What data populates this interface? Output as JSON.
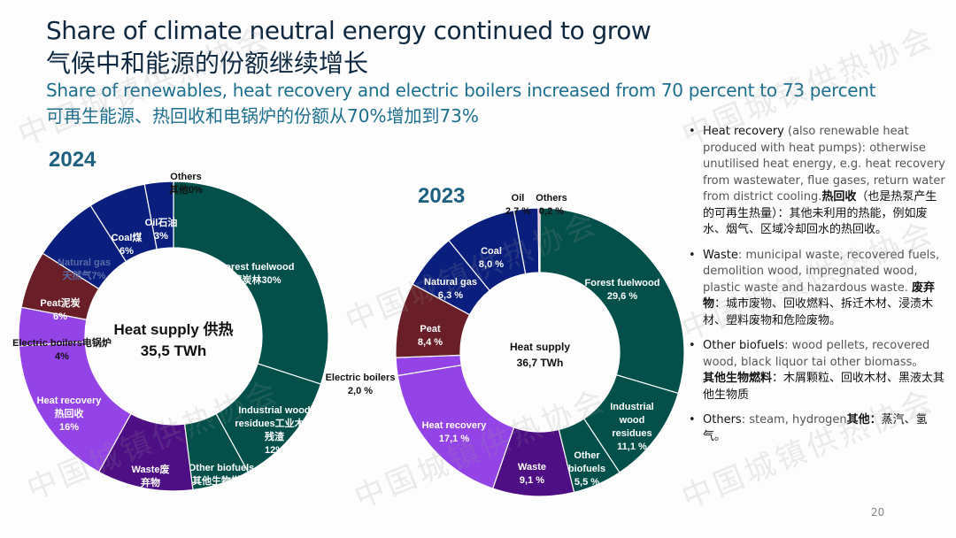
{
  "header": {
    "title_en": "Share of climate neutral energy continued to grow",
    "title_zh": "气候中和能源的份额继续增长",
    "subtitle_en": "Share of renewables, heat recovery and electric boilers increased from 70 percent to 73 percent",
    "subtitle_zh": "可再生能源、热回收和电锅炉的份额从70%增加到73%"
  },
  "watermark": "中国城镇供热协会",
  "colors": {
    "forest_green": "#03504a",
    "waste_purple": "#4e0f85",
    "heat_recovery_purple": "#9444e6",
    "peat_maroon": "#6a1e28",
    "fossil_navy": "#0a1f7d",
    "others_pink": "#e070a0",
    "title_navy": "#0e2841",
    "subtitle_teal": "#1d6f8f"
  },
  "chart_data": [
    {
      "type": "pie",
      "variant": "donut",
      "title": "2024",
      "center_label": "Heat supply 供热",
      "center_value": "35,5 TWh",
      "unit": "%",
      "categories": [
        "Forest fuelwood",
        "Industrial wood residues",
        "Other biofuels",
        "Waste",
        "Heat recovery",
        "Electric boilers",
        "Peat",
        "Natural gas",
        "Coal",
        "Oil",
        "Others"
      ],
      "values": [
        30,
        12,
        6,
        10,
        16,
        4,
        6,
        7,
        6,
        3,
        0
      ],
      "labels": [
        {
          "line1": "Forest fuelwood",
          "line2": "薪炭林30%"
        },
        {
          "line1": "Industrial wood",
          "line2": "residues工业木材",
          "line3": "残渣",
          "line4": "12%"
        },
        {
          "line1": "Other biofuels",
          "line2": "其他生物燃料",
          "line3": "6%"
        },
        {
          "line1": "Waste废",
          "line2": "弃物",
          "line3": "10%"
        },
        {
          "line1": "Heat recovery",
          "line2": "热回收",
          "line3": "16%"
        },
        {
          "line1": "Electric boilers电锅炉",
          "line2": "4%"
        },
        {
          "line1": "Peat泥炭",
          "line2": "6%"
        },
        {
          "line1": "Natural gas",
          "line2": "天然气7%"
        },
        {
          "line1": "Coal煤",
          "line2": "6%"
        },
        {
          "line1": "Oil石油",
          "line2": "3%"
        },
        {
          "line1": "Others",
          "line2": "其他0%"
        }
      ]
    },
    {
      "type": "pie",
      "variant": "donut",
      "title": "2023",
      "center_label": "Heat supply",
      "center_value": "36,7 TWh",
      "unit": "%",
      "categories": [
        "Forest fuelwood",
        "Industrial wood residues",
        "Other biofuels",
        "Waste",
        "Heat recovery",
        "Electric boilers",
        "Peat",
        "Natural gas",
        "Coal",
        "Oil",
        "Others"
      ],
      "values": [
        29.6,
        11.1,
        5.5,
        9.1,
        17.1,
        2.0,
        8.4,
        6.3,
        8.0,
        2.7,
        0.2
      ],
      "labels": [
        {
          "line1": "Forest fuelwood",
          "line2": "29,6 %"
        },
        {
          "line1": "Industrial",
          "line2": "wood",
          "line3": "residues",
          "line4": "11,1 %"
        },
        {
          "line1": "Other",
          "line2": "biofuels",
          "line3": "5,5 %"
        },
        {
          "line1": "Waste",
          "line2": "9,1 %"
        },
        {
          "line1": "Heat recovery",
          "line2": "17,1 %"
        },
        {
          "line1": "Electric boilers",
          "line2": "2,0 %"
        },
        {
          "line1": "Peat",
          "line2": "8,4 %"
        },
        {
          "line1": "Natural gas",
          "line2": "6,3 %"
        },
        {
          "line1": "Coal",
          "line2": "8,0 %"
        },
        {
          "line1": "Oil",
          "line2": "2,7 %"
        },
        {
          "line1": "Others",
          "line2": "0,2 %"
        }
      ]
    }
  ],
  "notes": [
    {
      "term": "Heat recovery",
      "text": " (also renewable heat produced with heat pumps): otherwise unutilised heat energy, e.g. heat recovery from wastewater, flue gases, return water from district cooling.",
      "zh_term": "热回收",
      "zh_text": "（也是热泵产生的可再生热量）：其他未利用的热能，例如废水、烟气、区域冷却回水的热回收。"
    },
    {
      "term": "Waste",
      "text": ": municipal waste, recovered fuels, demolition wood, impregnated wood, plastic waste and hazardous waste. ",
      "zh_term": "废弃物",
      "zh_text": "：城市废物、回收燃料、拆迁木材、浸渍木材、塑料废物和危险废物。"
    },
    {
      "term": "Other biofuels",
      "text": ": wood pellets, recovered wood, black liquor tai other biomass。",
      "zh_term": "其他生物燃料",
      "zh_text": "：木屑颗粒、回收木材、黑液太其他生物质"
    },
    {
      "term": "Others",
      "text": ": steam, hydrogen",
      "zh_term": "其他：",
      "zh_text": "蒸汽、氢气。"
    }
  ],
  "page_number": "20"
}
